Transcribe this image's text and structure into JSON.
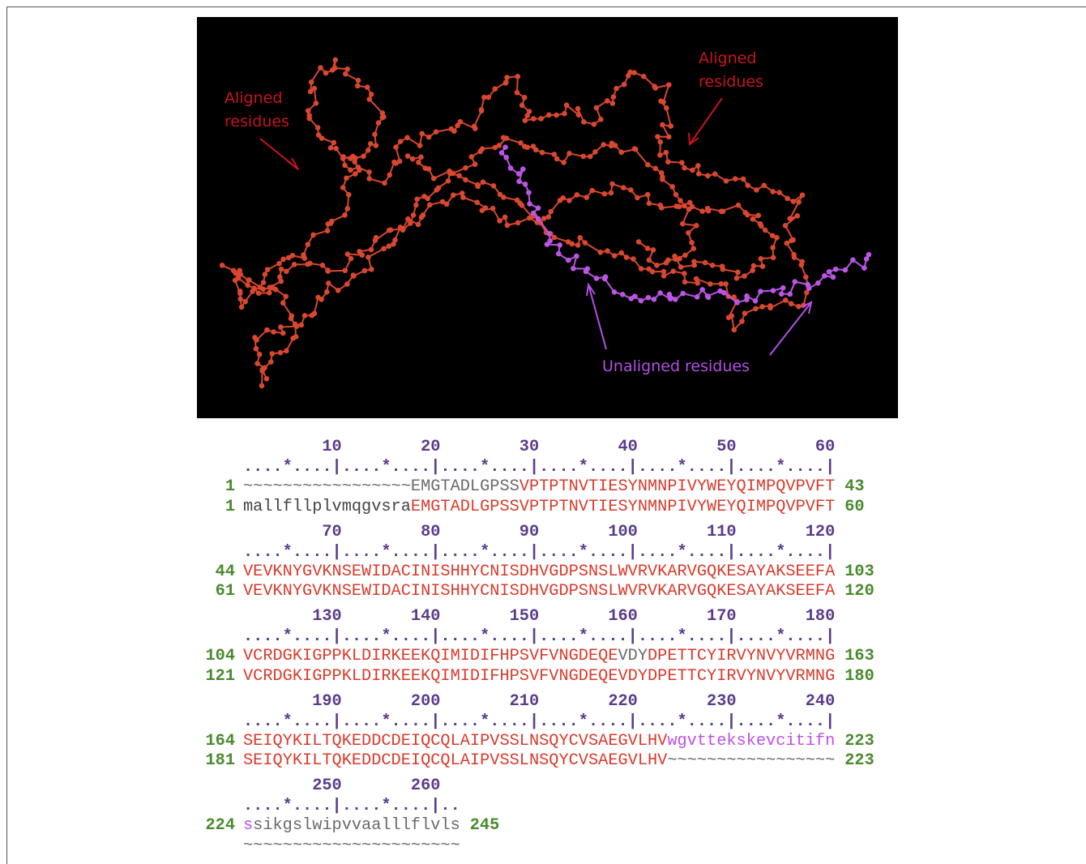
{
  "figure": {
    "annotations": [
      {
        "lines": [
          "Aligned",
          "residues"
        ],
        "color": "#c8141c"
      },
      {
        "lines": [
          "Aligned",
          "residues"
        ],
        "color": "#c8141c"
      },
      {
        "lines": [
          "Unaligned residues"
        ],
        "color": "#b44fe6"
      }
    ],
    "alignment": {
      "number_color": "#4a8a2e",
      "ruler_color": "#5b3c8c",
      "blocks": [
        {
          "ruler_numbers": "        10        20        30        40        50        60",
          "ruler": "....*....|....*....|....*....|....*....|....*....|....*....|",
          "rows": [
            {
              "start": "1",
              "end": "43",
              "segments": [
                {
                  "text": "~~~~~~~~~~~~~~~~~",
                  "color": "#6a6a6a"
                },
                {
                  "text": "EMGTADLGPSS",
                  "color": "#6a6a6a"
                },
                {
                  "text": "VPTPTNVTIESYNMNPIVYWEYQIMPQVPVFT",
                  "color": "#d93a2b"
                }
              ]
            },
            {
              "start": "1",
              "end": "60",
              "segments": [
                {
                  "text": "mallfllplvmqgvsra",
                  "color": "#444444"
                },
                {
                  "text": "EMGTADLGPSSVPTPTNVTIESYNMNPIVYWEYQIMPQVPVFT",
                  "color": "#d93a2b"
                }
              ]
            }
          ]
        },
        {
          "ruler_numbers": "        70        80        90       100       110       120",
          "ruler": "....*....|....*....|....*....|....*....|....*....|....*....|",
          "rows": [
            {
              "start": "44",
              "end": "103",
              "segments": [
                {
                  "text": "VEVKNYGVKNSEWIDACINISHHYCNISDHVGDPSNSLWVRVKARVGQKESAYAKSEEFA",
                  "color": "#d93a2b"
                }
              ]
            },
            {
              "start": "61",
              "end": "120",
              "segments": [
                {
                  "text": "VEVKNYGVKNSEWIDACINISHHYCNISDHVGDPSNSLWVRVKARVGQKESAYAKSEEFA",
                  "color": "#d93a2b"
                }
              ]
            }
          ]
        },
        {
          "ruler_numbers": "       130       140       150       160       170       180",
          "ruler": "....*....|....*....|....*....|....*....|....*....|....*....|",
          "rows": [
            {
              "start": "104",
              "end": "163",
              "segments": [
                {
                  "text": "VCRDGKIGPPKLDIRKEEKQIMIDIFHPSVFVNGDEQE",
                  "color": "#d93a2b"
                },
                {
                  "text": "VDY",
                  "color": "#6a6a6a"
                },
                {
                  "text": "DPETTCYIRVYNVYVRMNG",
                  "color": "#d93a2b"
                }
              ]
            },
            {
              "start": "121",
              "end": "180",
              "segments": [
                {
                  "text": "VCRDGKIGPPKLDIRKEEKQIMIDIFHPSVFVNGDEQEVDYDPETTCYIRVYNVYVRMNG",
                  "color": "#d93a2b"
                }
              ]
            }
          ]
        },
        {
          "ruler_numbers": "       190       200       210       220       230       240",
          "ruler": "....*....|....*....|....*....|....*....|....*....|....*....|",
          "rows": [
            {
              "start": "164",
              "end": "223",
              "segments": [
                {
                  "text": "SEIQYKILTQKEDDCDEIQCQLAIPVSSLNSQYCVSAEGVLHV",
                  "color": "#d93a2b"
                },
                {
                  "text": "wgvttekskevcitifn",
                  "color": "#c04fe8"
                }
              ]
            },
            {
              "start": "181",
              "end": "223",
              "segments": [
                {
                  "text": "SEIQYKILTQKEDDCDEIQCQLAIPVSSLNSQYCVSAEGVLHV",
                  "color": "#d93a2b"
                },
                {
                  "text": "~~~~~~~~~~~~~~~~~",
                  "color": "#6a6a6a"
                }
              ]
            }
          ]
        },
        {
          "ruler_numbers": "       250       260",
          "ruler": "....*....|....*....|..",
          "rows": [
            {
              "start": "224",
              "end": "245",
              "segments": [
                {
                  "text": "s",
                  "color": "#c04fe8"
                },
                {
                  "text": "sikgslwipvvaalllflvls",
                  "color": "#6a6a6a"
                }
              ]
            },
            {
              "segments": [
                {
                  "text": "~~~~~~~~~~~~~~~~~~~~~~",
                  "color": "#6a6a6a"
                }
              ]
            }
          ]
        }
      ]
    }
  }
}
